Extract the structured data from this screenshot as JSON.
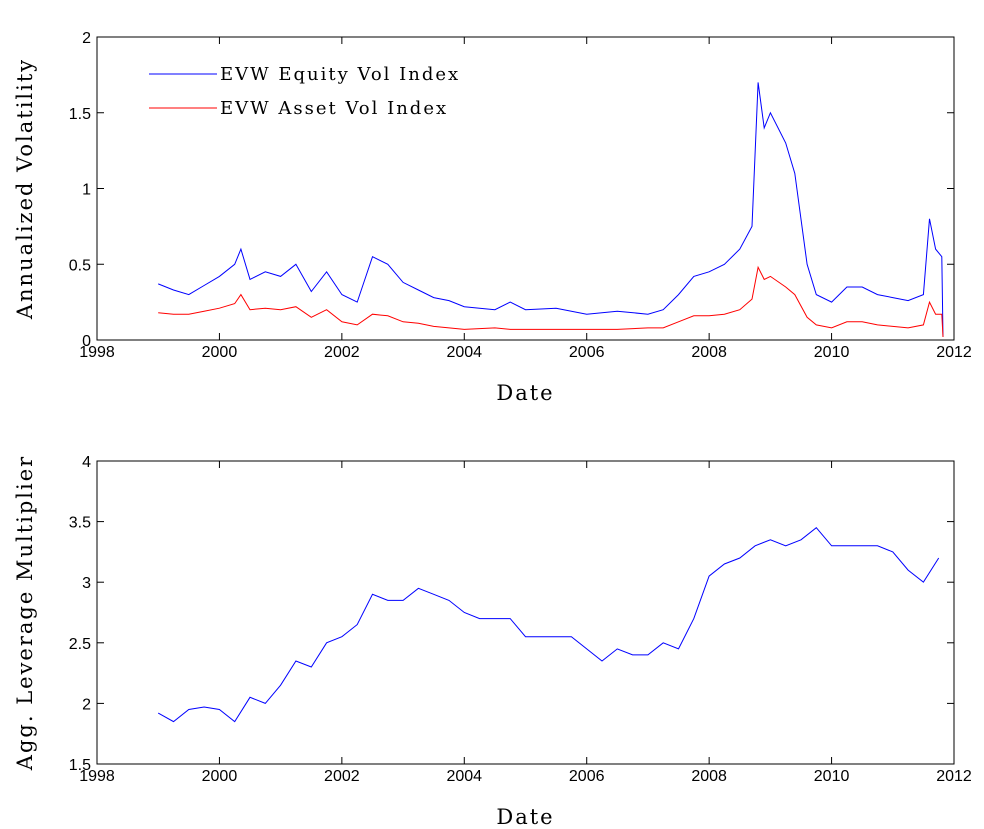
{
  "chart_data": [
    {
      "type": "line",
      "xlabel": "Date",
      "ylabel": "Annualized Volatility",
      "x": [
        1999.0,
        1999.25,
        1999.5,
        1999.75,
        2000.0,
        2000.25,
        2000.35,
        2000.5,
        2000.75,
        2001.0,
        2001.25,
        2001.5,
        2001.75,
        2002.0,
        2002.25,
        2002.5,
        2002.75,
        2003.0,
        2003.25,
        2003.5,
        2003.75,
        2004.0,
        2004.5,
        2004.75,
        2005.0,
        2005.5,
        2006.0,
        2006.5,
        2007.0,
        2007.25,
        2007.5,
        2007.75,
        2008.0,
        2008.25,
        2008.5,
        2008.7,
        2008.8,
        2008.9,
        2009.0,
        2009.25,
        2009.4,
        2009.6,
        2009.75,
        2010.0,
        2010.25,
        2010.5,
        2010.75,
        2011.0,
        2011.25,
        2011.5,
        2011.6,
        2011.7,
        2011.8,
        2011.82
      ],
      "series": [
        {
          "name": "EVW Equity Vol Index",
          "color": "#0000ff",
          "values": [
            0.37,
            0.33,
            0.3,
            0.36,
            0.42,
            0.5,
            0.6,
            0.4,
            0.45,
            0.42,
            0.5,
            0.32,
            0.45,
            0.3,
            0.25,
            0.55,
            0.5,
            0.38,
            0.33,
            0.28,
            0.26,
            0.22,
            0.2,
            0.25,
            0.2,
            0.21,
            0.17,
            0.19,
            0.17,
            0.2,
            0.3,
            0.42,
            0.45,
            0.5,
            0.6,
            0.75,
            1.7,
            1.4,
            1.5,
            1.3,
            1.1,
            0.5,
            0.3,
            0.25,
            0.35,
            0.35,
            0.3,
            0.28,
            0.26,
            0.3,
            0.8,
            0.6,
            0.55,
            0.02
          ]
        },
        {
          "name": "EVW Asset Vol Index",
          "color": "#ff0000",
          "values": [
            0.18,
            0.17,
            0.17,
            0.19,
            0.21,
            0.24,
            0.3,
            0.2,
            0.21,
            0.2,
            0.22,
            0.15,
            0.2,
            0.12,
            0.1,
            0.17,
            0.16,
            0.12,
            0.11,
            0.09,
            0.08,
            0.07,
            0.08,
            0.07,
            0.07,
            0.07,
            0.07,
            0.07,
            0.08,
            0.08,
            0.12,
            0.16,
            0.16,
            0.17,
            0.2,
            0.27,
            0.48,
            0.4,
            0.42,
            0.35,
            0.3,
            0.15,
            0.1,
            0.08,
            0.12,
            0.12,
            0.1,
            0.09,
            0.08,
            0.1,
            0.25,
            0.17,
            0.17,
            0.02
          ]
        }
      ],
      "xlim": [
        1998,
        2012
      ],
      "xticks": [
        1998,
        2000,
        2002,
        2004,
        2006,
        2008,
        2010,
        2012
      ],
      "ylim": [
        0,
        2
      ],
      "yticks": [
        0,
        0.5,
        1,
        1.5,
        2
      ],
      "legend": "upper left"
    },
    {
      "type": "line",
      "xlabel": "Date",
      "ylabel": "Agg. Leverage Multiplier",
      "x": [
        1999.0,
        1999.25,
        1999.5,
        1999.75,
        2000.0,
        2000.25,
        2000.5,
        2000.75,
        2001.0,
        2001.25,
        2001.5,
        2001.75,
        2002.0,
        2002.25,
        2002.5,
        2002.75,
        2003.0,
        2003.25,
        2003.5,
        2003.75,
        2004.0,
        2004.25,
        2004.5,
        2004.75,
        2005.0,
        2005.25,
        2005.5,
        2005.75,
        2006.0,
        2006.25,
        2006.5,
        2006.75,
        2007.0,
        2007.25,
        2007.5,
        2007.75,
        2008.0,
        2008.25,
        2008.5,
        2008.75,
        2009.0,
        2009.25,
        2009.5,
        2009.75,
        2010.0,
        2010.25,
        2010.5,
        2010.75,
        2011.0,
        2011.25,
        2011.5,
        2011.75
      ],
      "series": [
        {
          "color": "#0000ff",
          "values": [
            1.92,
            1.85,
            1.95,
            1.97,
            1.95,
            1.85,
            2.05,
            2.0,
            2.15,
            2.35,
            2.3,
            2.5,
            2.55,
            2.65,
            2.9,
            2.85,
            2.85,
            2.95,
            2.9,
            2.85,
            2.75,
            2.7,
            2.7,
            2.7,
            2.55,
            2.55,
            2.55,
            2.55,
            2.45,
            2.35,
            2.45,
            2.4,
            2.4,
            2.5,
            2.45,
            2.7,
            3.05,
            3.15,
            3.2,
            3.3,
            3.35,
            3.3,
            3.35,
            3.45,
            3.3,
            3.3,
            3.3,
            3.3,
            3.25,
            3.1,
            3.0,
            3.2
          ]
        }
      ],
      "xlim": [
        1998,
        2012
      ],
      "xticks": [
        1998,
        2000,
        2002,
        2004,
        2006,
        2008,
        2010,
        2012
      ],
      "ylim": [
        1.5,
        4
      ],
      "yticks": [
        1.5,
        2,
        2.5,
        3,
        3.5,
        4
      ]
    }
  ]
}
